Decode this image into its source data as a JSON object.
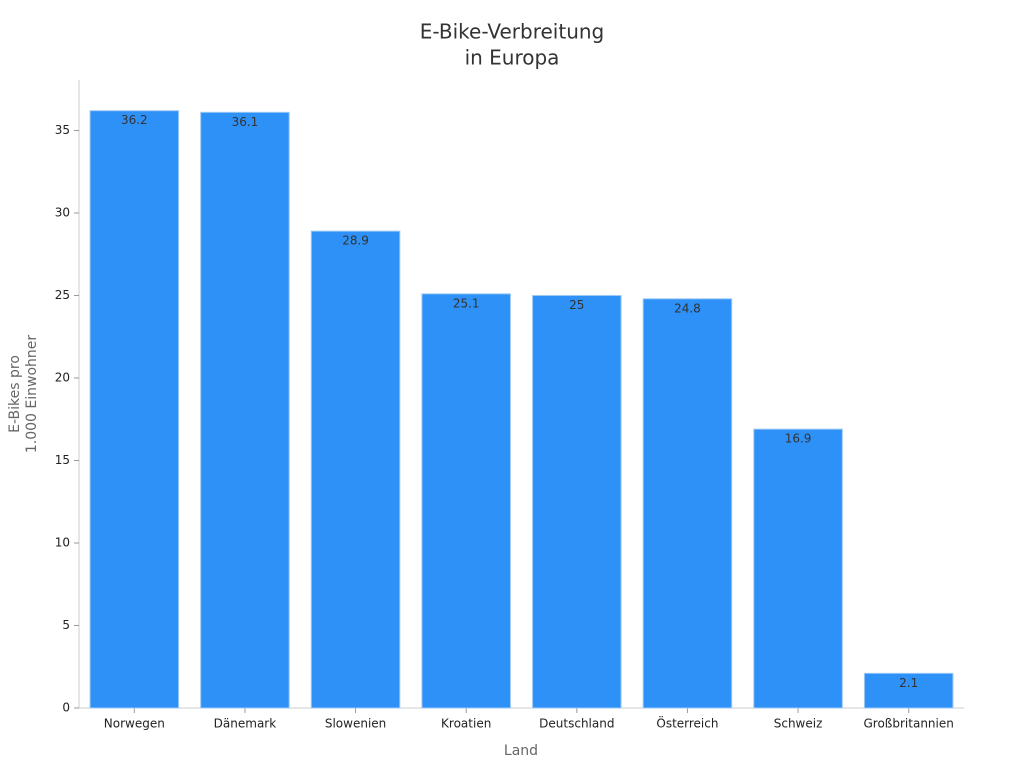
{
  "chart_data": {
    "type": "bar",
    "title": [
      "E-Bike-Verbreitung",
      "in Europa"
    ],
    "xlabel": "Land",
    "ylabel": [
      "E-Bikes pro",
      "1.000 Einwohner"
    ],
    "categories": [
      "Norwegen",
      "Dänemark",
      "Slowenien",
      "Kroatien",
      "Deutschland",
      "Österreich",
      "Schweiz",
      "Großbritannien"
    ],
    "values": [
      36.2,
      36.1,
      28.9,
      25.1,
      25,
      24.8,
      16.9,
      2.1
    ],
    "color": "#2e91f7",
    "ylim": [
      0,
      38
    ],
    "yticks": [
      0,
      5,
      10,
      15,
      20,
      25,
      30,
      35
    ],
    "grid": false
  }
}
